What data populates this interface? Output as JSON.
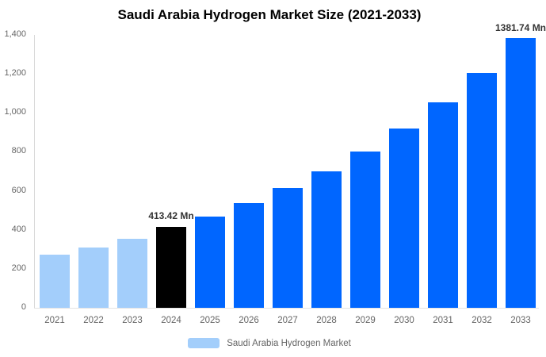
{
  "title": "Saudi Arabia Hydrogen Market Size (2021-2033)",
  "colors": {
    "historical_bar": "#A3CEFB",
    "highlight_bar": "#000000",
    "forecast_bar": "#0066FF",
    "axis_text": "#666666",
    "annotation_text": "#333333",
    "axis_line": "#D9D9D9",
    "background": "#FFFFFF"
  },
  "legend": {
    "items": [
      {
        "label": "Saudi Arabia Hydrogen Market",
        "color": "#A3CEFB"
      }
    ]
  },
  "chart_data": {
    "type": "bar",
    "title": "Saudi Arabia Hydrogen Market Size (2021-2033)",
    "categories": [
      "2021",
      "2022",
      "2023",
      "2024",
      "2025",
      "2026",
      "2027",
      "2028",
      "2029",
      "2030",
      "2031",
      "2032",
      "2033"
    ],
    "series": [
      {
        "name": "Saudi Arabia Hydrogen Market",
        "unit": "Mn",
        "values": [
          272,
          311,
          356,
          413.42,
          468,
          536,
          614,
          702,
          803,
          919,
          1053,
          1206,
          1381.74
        ]
      }
    ],
    "bar_colors": [
      "#A3CEFB",
      "#A3CEFB",
      "#A3CEFB",
      "#000000",
      "#0066FF",
      "#0066FF",
      "#0066FF",
      "#0066FF",
      "#0066FF",
      "#0066FF",
      "#0066FF",
      "#0066FF",
      "#0066FF"
    ],
    "annotations": [
      {
        "category": "2024",
        "text": "413.42 Mn"
      },
      {
        "category": "2033",
        "text": "1381.74 Mn"
      }
    ],
    "yticks": [
      {
        "value": 0,
        "label": "0"
      },
      {
        "value": 200,
        "label": "200"
      },
      {
        "value": 400,
        "label": "400"
      },
      {
        "value": 600,
        "label": "600"
      },
      {
        "value": 800,
        "label": "800"
      },
      {
        "value": 1000,
        "label": "1,000"
      },
      {
        "value": 1200,
        "label": "1,200"
      },
      {
        "value": 1400,
        "label": "1,400"
      }
    ],
    "ylim": [
      0,
      1400
    ],
    "xlabel": "",
    "ylabel": "",
    "grid": false,
    "legend_position": "bottom"
  }
}
